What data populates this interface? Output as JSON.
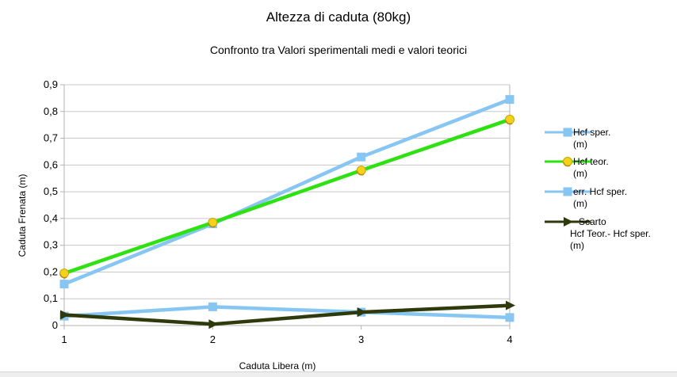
{
  "chart_data": {
    "type": "line",
    "title": "Altezza di caduta (80kg)",
    "subtitle": "Confronto tra Valori sperimentali medi e valori teorici",
    "xlabel": "Caduta Libera (m)",
    "ylabel": "Caduta Frenata (m)",
    "x": [
      1,
      2,
      3,
      4
    ],
    "xticks": [
      "1",
      "2",
      "3",
      "4"
    ],
    "yticks": [
      "0",
      "0,1",
      "0,2",
      "0,3",
      "0,4",
      "0,5",
      "0,6",
      "0,7",
      "0,8",
      "0,9"
    ],
    "ylim": [
      0,
      0.9
    ],
    "grid": true,
    "legend_position": "right",
    "series": [
      {
        "name": "Hcf sper. (m)",
        "legend_lines": [
          "Hcf sper.",
          "(m)"
        ],
        "color": "#87c6f2",
        "marker": "square",
        "values": [
          0.155,
          0.38,
          0.63,
          0.845
        ]
      },
      {
        "name": "Hcf teor. (m)",
        "legend_lines": [
          "Hcf teor.",
          "(m)"
        ],
        "color": "#2ee212",
        "marker": "yellow-circle",
        "values": [
          0.195,
          0.385,
          0.58,
          0.77
        ]
      },
      {
        "name": "err. Hcf sper. (m)",
        "legend_lines": [
          "err. Hcf sper.",
          "(m)"
        ],
        "color": "#87c6f2",
        "marker": "square",
        "values": [
          0.035,
          0.07,
          0.05,
          0.03
        ]
      },
      {
        "name": "Scarto Hcf Teor.- Hcf sper. (m)",
        "legend_lines": [
          "Scarto",
          "Hcf Teor.- Hcf sper.",
          "(m)"
        ],
        "color": "#2e3a0c",
        "marker": "right-triangle",
        "values": [
          0.04,
          0.005,
          0.05,
          0.075
        ]
      }
    ]
  }
}
